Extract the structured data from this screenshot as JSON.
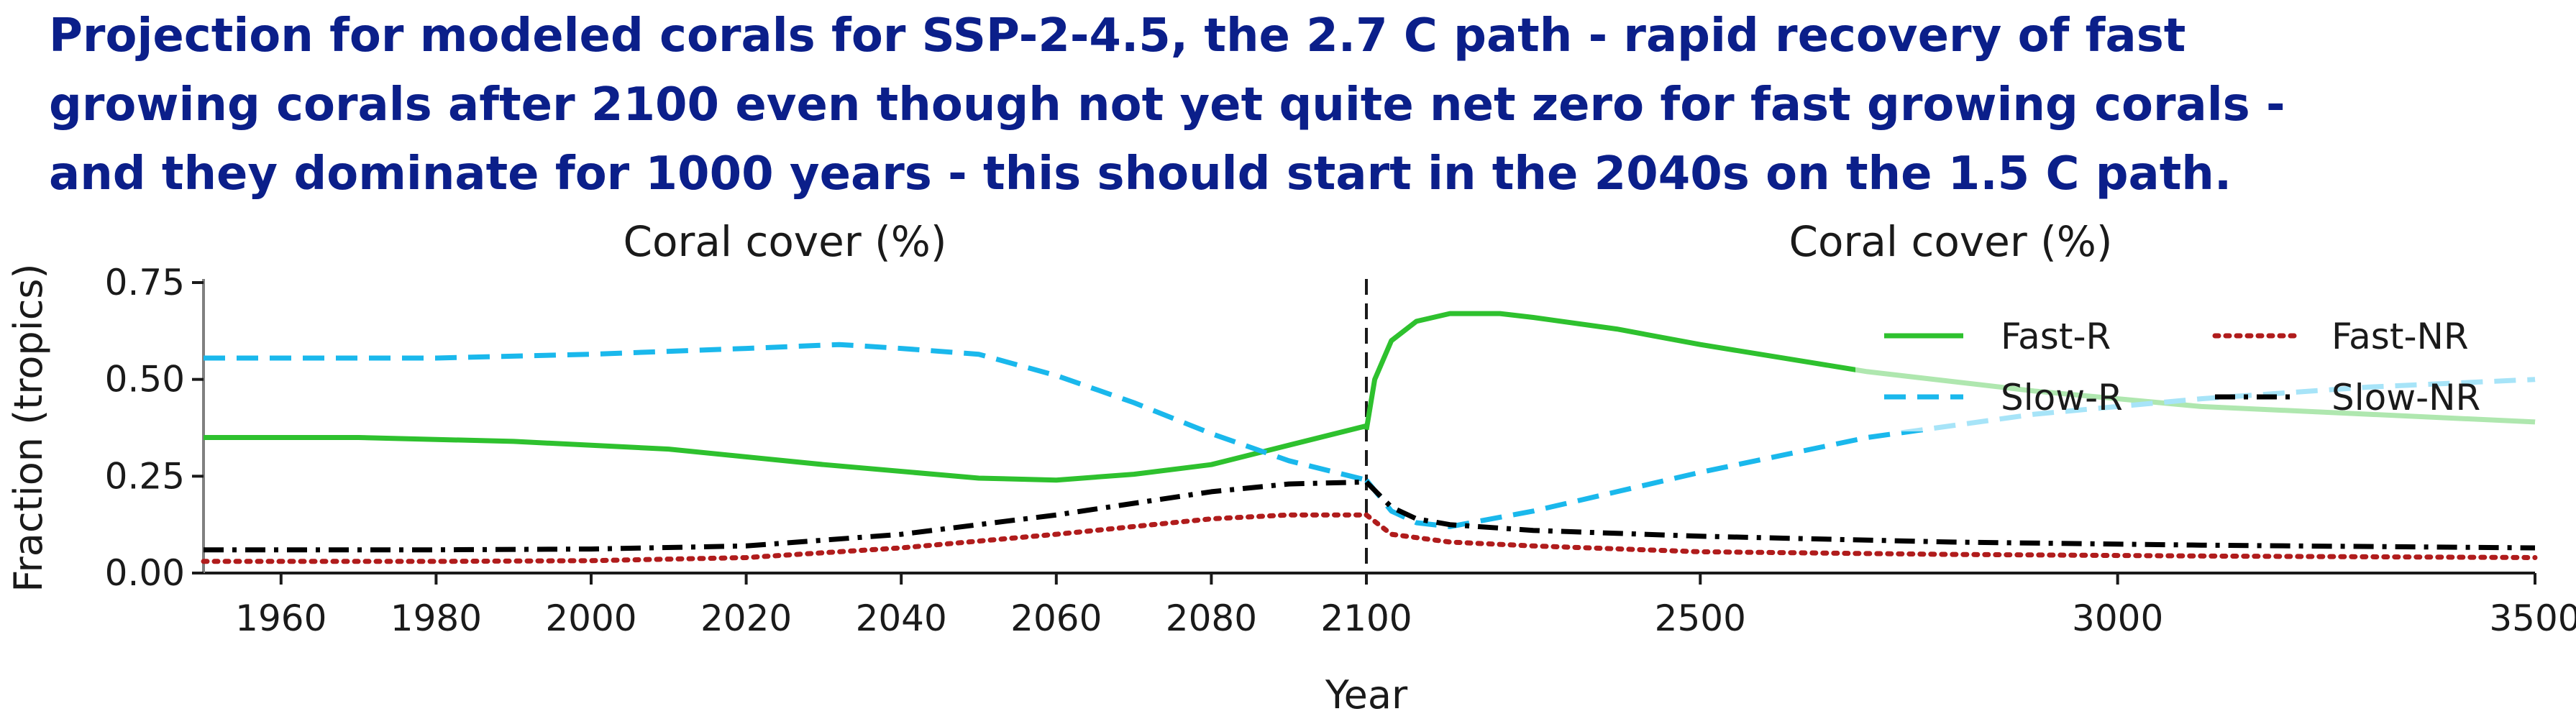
{
  "headline": [
    "Projection for modeled corals for SSP-2-4.5, the 2.7 C path  - rapid recovery of fast",
    "growing corals after 2100 even though not yet quite net zero for fast growing corals -",
    "and they dominate for 1000 years - this should start in the 2040s on the 1.5 C path."
  ],
  "chart_data": {
    "type": "line",
    "panels": [
      {
        "title": "Coral cover (%)",
        "xlim": [
          1950,
          2100
        ],
        "xticks": [
          1960,
          1980,
          2000,
          2020,
          2040,
          2060,
          2080,
          2100
        ],
        "ylim": [
          0,
          0.75
        ],
        "yticks": [
          "0.00",
          "0.25",
          "0.50",
          "0.75"
        ],
        "ylabel": "Fraction (tropics)",
        "series": [
          {
            "name": "Fast-R",
            "x": [
              1950,
              1970,
              1990,
              2010,
              2030,
              2050,
              2060,
              2070,
              2080,
              2090,
              2100
            ],
            "y": [
              0.35,
              0.35,
              0.34,
              0.32,
              0.28,
              0.245,
              0.24,
              0.255,
              0.28,
              0.33,
              0.38
            ]
          },
          {
            "name": "Slow-R",
            "x": [
              1950,
              1980,
              2000,
              2020,
              2032,
              2040,
              2050,
              2060,
              2070,
              2080,
              2090,
              2100
            ],
            "y": [
              0.555,
              0.555,
              0.565,
              0.58,
              0.59,
              0.58,
              0.565,
              0.51,
              0.44,
              0.36,
              0.29,
              0.24
            ]
          },
          {
            "name": "Fast-NR",
            "x": [
              1950,
              1980,
              2000,
              2020,
              2040,
              2060,
              2080,
              2090,
              2100
            ],
            "y": [
              0.03,
              0.03,
              0.032,
              0.04,
              0.065,
              0.1,
              0.14,
              0.15,
              0.15
            ]
          },
          {
            "name": "Slow-NR",
            "x": [
              1950,
              1980,
              2000,
              2020,
              2040,
              2060,
              2070,
              2080,
              2090,
              2100
            ],
            "y": [
              0.06,
              0.06,
              0.062,
              0.07,
              0.1,
              0.15,
              0.18,
              0.21,
              0.23,
              0.235
            ]
          }
        ]
      },
      {
        "title": "Coral cover (%)",
        "xlim": [
          2100,
          3500
        ],
        "xticks": [
          2100,
          2500,
          3000,
          3500
        ],
        "ylim": [
          0,
          0.75
        ],
        "series": [
          {
            "name": "Fast-R",
            "x": [
              2100,
              2110,
              2130,
              2160,
              2200,
              2260,
              2300,
              2400,
              2500,
              2700,
              2900,
              3100,
              3300,
              3500
            ],
            "y": [
              0.37,
              0.5,
              0.6,
              0.65,
              0.67,
              0.67,
              0.66,
              0.63,
              0.59,
              0.52,
              0.47,
              0.43,
              0.41,
              0.39
            ]
          },
          {
            "name": "Slow-R",
            "x": [
              2100,
              2130,
              2160,
              2200,
              2300,
              2400,
              2500,
              2700,
              2900,
              3100,
              3300,
              3500
            ],
            "y": [
              0.24,
              0.16,
              0.13,
              0.12,
              0.16,
              0.21,
              0.26,
              0.35,
              0.41,
              0.45,
              0.48,
              0.5
            ]
          },
          {
            "name": "Fast-NR",
            "x": [
              2100,
              2130,
              2200,
              2300,
              2500,
              2800,
              3100,
              3500
            ],
            "y": [
              0.15,
              0.1,
              0.08,
              0.07,
              0.055,
              0.048,
              0.044,
              0.04
            ]
          },
          {
            "name": "Slow-NR",
            "x": [
              2100,
              2130,
              2160,
              2200,
              2300,
              2500,
              2800,
              3100,
              3500
            ],
            "y": [
              0.235,
              0.17,
              0.14,
              0.125,
              0.11,
              0.095,
              0.08,
              0.072,
              0.065
            ]
          }
        ]
      }
    ],
    "xlabel": "Year",
    "legend": {
      "placement": "top-right",
      "columns": 2,
      "entries": [
        "Fast-R",
        "Fast-NR",
        "Slow-R",
        "Slow-NR"
      ]
    },
    "divider_year": 2100,
    "styles": {
      "Fast-R": {
        "color": "#2ec12e",
        "dash": "solid"
      },
      "Slow-R": {
        "color": "#1ab8ec",
        "dash": "dashed"
      },
      "Fast-NR": {
        "color": "#b01c1c",
        "dash": "dotted"
      },
      "Slow-NR": {
        "color": "#000000",
        "dash": "dashdot"
      }
    }
  }
}
